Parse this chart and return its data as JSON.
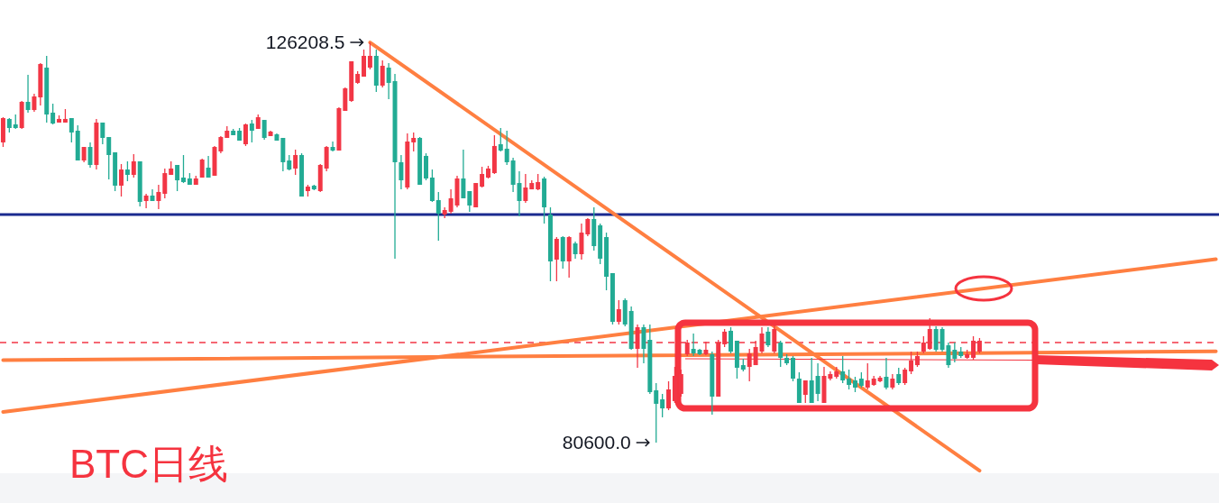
{
  "chart_data": {
    "type": "candlestick",
    "title": "BTC日线",
    "categories": [
      null,
      null,
      null,
      null,
      null,
      null,
      null,
      null,
      null,
      null,
      null,
      null,
      null,
      null,
      null,
      null,
      null,
      null,
      null,
      null,
      null,
      null,
      null,
      null,
      null,
      null,
      null,
      null,
      null,
      null,
      null,
      null,
      null,
      null,
      null,
      null,
      null,
      null,
      null,
      null,
      null,
      null,
      null,
      null,
      null,
      null,
      null,
      null,
      null,
      null,
      null,
      null,
      null,
      null,
      null,
      null,
      null,
      null,
      null,
      null,
      null,
      null,
      null,
      null,
      null,
      null,
      null,
      null,
      null,
      null,
      null,
      null,
      null,
      null,
      null,
      null,
      null,
      null,
      null,
      null,
      null,
      null,
      null,
      null,
      null,
      null,
      null,
      null,
      null,
      null,
      null,
      null,
      null,
      null,
      null,
      null,
      null,
      null,
      null,
      null,
      null,
      null,
      null,
      null,
      null,
      null,
      null,
      null,
      null,
      null,
      null,
      null,
      null,
      null,
      null,
      null,
      null,
      null,
      null,
      null,
      null,
      null,
      null,
      null,
      null,
      null,
      null,
      null,
      null,
      null,
      null,
      null,
      null,
      null,
      null,
      null,
      null,
      null,
      null,
      null,
      null,
      null,
      null,
      null,
      null,
      null,
      null,
      null,
      null,
      null,
      null,
      null,
      null,
      null,
      null,
      null,
      null,
      null,
      null,
      null,
      null,
      null,
      null,
      null,
      null,
      null,
      null,
      null,
      null,
      null,
      null,
      null,
      null,
      null,
      null,
      null,
      null,
      null,
      null,
      null,
      null,
      null,
      null,
      null,
      null,
      null,
      null,
      null,
      null,
      null,
      null,
      null,
      null,
      null,
      null,
      null
    ],
    "ohlc": [
      [
        114810,
        117680,
        114290,
        117580
      ],
      [
        117480,
        117580,
        115940,
        116450
      ],
      [
        116860,
        117990,
        116350,
        116450
      ],
      [
        116450,
        119530,
        116350,
        119430
      ],
      [
        119430,
        122510,
        118200,
        118500
      ],
      [
        118500,
        120350,
        118300,
        120050
      ],
      [
        119940,
        123850,
        119020,
        123740
      ],
      [
        123330,
        124670,
        117070,
        117990
      ],
      [
        118200,
        119220,
        116860,
        116960
      ],
      [
        117070,
        117890,
        117070,
        117480
      ],
      [
        117070,
        118610,
        117070,
        117480
      ],
      [
        117580,
        117580,
        114810,
        115940
      ],
      [
        116140,
        116760,
        112750,
        112750
      ],
      [
        112750,
        114290,
        112550,
        114290
      ],
      [
        114290,
        114810,
        111930,
        112240
      ],
      [
        112240,
        117480,
        111720,
        117070
      ],
      [
        117070,
        117070,
        114600,
        115320
      ],
      [
        115420,
        115420,
        110590,
        113370
      ],
      [
        113680,
        113680,
        109260,
        109880
      ],
      [
        109880,
        112340,
        108640,
        111720
      ],
      [
        111720,
        112650,
        110390,
        111110
      ],
      [
        111110,
        113470,
        110800,
        112650
      ],
      [
        112650,
        112650,
        107510,
        108030
      ],
      [
        108130,
        108950,
        107310,
        108750
      ],
      [
        108750,
        109460,
        108130,
        108130
      ],
      [
        108130,
        109980,
        107210,
        109160
      ],
      [
        108950,
        111830,
        108440,
        111310
      ],
      [
        111110,
        112650,
        111110,
        111830
      ],
      [
        112240,
        112240,
        109260,
        110490
      ],
      [
        110800,
        113370,
        110180,
        110290
      ],
      [
        110700,
        111310,
        109980,
        109980
      ],
      [
        109980,
        111010,
        109980,
        110700
      ],
      [
        110800,
        112960,
        110800,
        112850
      ],
      [
        111930,
        113270,
        110800,
        110800
      ],
      [
        111010,
        114400,
        111010,
        114290
      ],
      [
        113780,
        115530,
        113570,
        115420
      ],
      [
        115320,
        116660,
        115320,
        116140
      ],
      [
        116140,
        116350,
        115630,
        115630
      ],
      [
        116140,
        116450,
        115010,
        115010
      ],
      [
        114600,
        116960,
        114400,
        116860
      ],
      [
        116960,
        117370,
        114810,
        116140
      ],
      [
        116350,
        117990,
        116350,
        117680
      ],
      [
        117370,
        117370,
        115110,
        115320
      ],
      [
        115530,
        116140,
        115530,
        116040
      ],
      [
        115730,
        115830,
        115010,
        115010
      ],
      [
        115320,
        115320,
        111520,
        112550
      ],
      [
        112750,
        113370,
        111620,
        111720
      ],
      [
        111830,
        113980,
        111110,
        113370
      ],
      [
        113370,
        113570,
        108640,
        108640
      ],
      [
        109260,
        109980,
        108640,
        109770
      ],
      [
        109880,
        109980,
        109360,
        109460
      ],
      [
        109260,
        112340,
        109160,
        112240
      ],
      [
        111830,
        114400,
        111520,
        114290
      ],
      [
        114290,
        114910,
        113780,
        113880
      ],
      [
        113880,
        118810,
        113880,
        118710
      ],
      [
        118400,
        121070,
        118400,
        120970
      ],
      [
        119530,
        124050,
        119430,
        124050
      ],
      [
        121590,
        122920,
        121480,
        122610
      ],
      [
        122300,
        125390,
        122300,
        124670
      ],
      [
        123330,
        126208.5,
        123130,
        124670
      ],
      [
        124670,
        125390,
        120560,
        121280
      ],
      [
        121280,
        124150,
        121070,
        123540
      ],
      [
        123330,
        123850,
        119740,
        121590
      ],
      [
        121790,
        122610,
        101560,
        112550
      ],
      [
        112550,
        113370,
        109460,
        110490
      ],
      [
        109670,
        115830,
        109460,
        114910
      ],
      [
        114810,
        115940,
        113780,
        115320
      ],
      [
        115320,
        115420,
        109980,
        109980
      ],
      [
        113270,
        113570,
        110490,
        110700
      ],
      [
        110800,
        111720,
        108030,
        108130
      ],
      [
        108230,
        109160,
        103610,
        106690
      ],
      [
        106590,
        107410,
        106180,
        107100
      ],
      [
        106900,
        109460,
        106690,
        108440
      ],
      [
        107620,
        111010,
        107410,
        110700
      ],
      [
        110700,
        113980,
        108440,
        108440
      ],
      [
        109260,
        109260,
        106900,
        107620
      ],
      [
        107410,
        110180,
        107410,
        110180
      ],
      [
        109770,
        112030,
        109670,
        111210
      ],
      [
        110800,
        112140,
        110700,
        111830
      ],
      [
        111310,
        115630,
        111210,
        114400
      ],
      [
        114600,
        116450,
        113780,
        113880
      ],
      [
        114090,
        116140,
        112240,
        112550
      ],
      [
        112750,
        113060,
        109160,
        109980
      ],
      [
        110180,
        111520,
        106380,
        108130
      ],
      [
        108130,
        111210,
        107920,
        109670
      ],
      [
        109460,
        110490,
        109460,
        110180
      ],
      [
        109460,
        111210,
        109360,
        110290
      ],
      [
        110700,
        110900,
        105560,
        107410
      ],
      [
        106590,
        107410,
        98990,
        101250
      ],
      [
        101450,
        104020,
        98990,
        103820
      ],
      [
        104020,
        104120,
        100430,
        101250
      ],
      [
        101250,
        104120,
        99400,
        104020
      ],
      [
        103300,
        103510,
        101560,
        102070
      ],
      [
        102070,
        105560,
        101450,
        104530
      ],
      [
        104330,
        106180,
        104120,
        106080
      ],
      [
        106080,
        107410,
        102480,
        102990
      ],
      [
        105360,
        105560,
        100940,
        101560
      ],
      [
        104020,
        104530,
        97960,
        99500
      ],
      [
        99910,
        99910,
        94060,
        94360
      ],
      [
        94360,
        96830,
        94060,
        95800
      ],
      [
        96830,
        97040,
        93850,
        94060
      ],
      [
        95600,
        96110,
        91180,
        91280
      ],
      [
        91280,
        94060,
        89130,
        93750
      ],
      [
        93750,
        94060,
        89640,
        91280
      ],
      [
        92310,
        94060,
        86150,
        86350
      ],
      [
        86560,
        87380,
        80600.0,
        85020
      ],
      [
        85530,
        86150,
        83480,
        84500
      ],
      [
        84500,
        87590,
        84300,
        86660
      ],
      [
        85330,
        89230,
        85120,
        88200
      ],
      [
        86150,
        88920,
        85840,
        88410
      ],
      [
        90670,
        92310,
        90460,
        92000
      ],
      [
        91280,
        93030,
        90460,
        90770
      ],
      [
        91180,
        91280,
        90560,
        90670
      ],
      [
        90670,
        92110,
        90560,
        91180
      ],
      [
        90670,
        90970,
        83780,
        85840
      ],
      [
        85840,
        92310,
        85840,
        92000
      ],
      [
        91800,
        93540,
        91490,
        93240
      ],
      [
        93340,
        93750,
        90770,
        90970
      ],
      [
        92210,
        92210,
        87890,
        89130
      ],
      [
        89430,
        90150,
        88720,
        88920
      ],
      [
        89230,
        91280,
        87590,
        90770
      ],
      [
        89430,
        92210,
        89430,
        91490
      ],
      [
        90970,
        93750,
        90770,
        93030
      ],
      [
        93240,
        93750,
        91490,
        91690
      ],
      [
        90970,
        93950,
        90770,
        93540
      ],
      [
        92000,
        92210,
        89230,
        90260
      ],
      [
        90260,
        90670,
        89430,
        89640
      ],
      [
        90260,
        90460,
        87590,
        87890
      ],
      [
        87890,
        88610,
        85120,
        85120
      ],
      [
        86040,
        87690,
        85120,
        87690
      ],
      [
        87690,
        90260,
        85120,
        85120
      ],
      [
        88200,
        89640,
        85330,
        86150
      ],
      [
        85120,
        89230,
        85120,
        88200
      ],
      [
        87890,
        88720,
        87690,
        88410
      ],
      [
        88100,
        89230,
        87890,
        88720
      ],
      [
        88720,
        90460,
        87380,
        87690
      ],
      [
        87890,
        88920,
        86660,
        87170
      ],
      [
        87690,
        88100,
        86350,
        86870
      ],
      [
        87890,
        88610,
        86870,
        87070
      ],
      [
        86870,
        89640,
        86660,
        87690
      ],
      [
        87170,
        88200,
        87070,
        87890
      ],
      [
        87590,
        88200,
        87480,
        88000
      ],
      [
        88100,
        90260,
        86660,
        86870
      ],
      [
        86870,
        88410,
        86660,
        87890
      ],
      [
        88410,
        89130,
        87170,
        87380
      ],
      [
        87380,
        89130,
        87170,
        88920
      ],
      [
        88720,
        90970,
        88410,
        89950
      ],
      [
        89430,
        90970,
        89230,
        90460
      ],
      [
        90970,
        92720,
        90770,
        92000
      ],
      [
        91280,
        94780,
        91180,
        93540
      ],
      [
        93540,
        93850,
        90970,
        91180
      ],
      [
        93540,
        93750,
        90970,
        91180
      ],
      [
        91690,
        92000,
        89130,
        89430
      ],
      [
        91180,
        92000,
        89740,
        90150
      ],
      [
        90970,
        91490,
        90260,
        90460
      ],
      [
        90260,
        91180,
        90150,
        90670
      ],
      [
        90260,
        92720,
        90050,
        92210
      ],
      [
        90970,
        92520,
        90770,
        92210
      ],
      null,
      null,
      null,
      null,
      null,
      null,
      null,
      null,
      null,
      null,
      null,
      null,
      null,
      null,
      null,
      null,
      null,
      null,
      null,
      null,
      null,
      null,
      null,
      null,
      null,
      null,
      null,
      null,
      null,
      null,
      null,
      null,
      null,
      null,
      null,
      null,
      null,
      null
    ],
    "series": [
      {
        "type": "line",
        "color": "#ff7f41",
        "values": [
          null,
          null,
          null,
          null,
          null,
          null,
          null,
          null,
          null,
          null,
          null,
          null,
          null,
          null,
          null,
          null,
          null,
          null,
          null,
          null,
          null,
          null,
          null,
          null,
          null,
          null,
          null,
          null,
          null,
          null,
          null,
          null,
          null,
          null,
          null,
          null,
          null,
          null,
          null,
          null,
          null,
          null,
          null,
          null,
          null,
          null,
          null,
          null,
          null,
          null,
          null,
          null,
          null,
          null,
          null,
          null,
          null,
          null,
          null,
          126200,
          null,
          null,
          null,
          null,
          null,
          null,
          null,
          null,
          null,
          null,
          null,
          null,
          null,
          null,
          null,
          null,
          null,
          null,
          null,
          null,
          null,
          null,
          null,
          null,
          null,
          null,
          null,
          null,
          null,
          null,
          null,
          null,
          null,
          null,
          null,
          null,
          null,
          null,
          null,
          null,
          null,
          null,
          null,
          null,
          null,
          null,
          null,
          null,
          null,
          null,
          null,
          null,
          null,
          null,
          null,
          null,
          null,
          null,
          null,
          null,
          null,
          null,
          null,
          null,
          null,
          null,
          null,
          null,
          null,
          null,
          null,
          null,
          null,
          null,
          null,
          null,
          null,
          null,
          null,
          null,
          null,
          null,
          null,
          null,
          null,
          null,
          null,
          null,
          null,
          null,
          null,
          null,
          null,
          null,
          null,
          null,
          null,
          77400,
          null,
          null,
          null,
          null,
          null,
          null,
          null,
          null,
          null,
          null,
          null,
          null,
          null,
          null,
          null,
          null,
          null,
          null,
          null,
          null,
          null,
          null,
          null,
          null,
          null,
          null,
          null,
          null,
          null,
          null,
          null,
          null,
          null,
          null,
          null,
          null,
          null,
          null
        ]
      },
      {
        "type": "line",
        "color": "#ff7f41",
        "values": [
          84100,
          null,
          null,
          null,
          null,
          null,
          null,
          null,
          null,
          null,
          null,
          null,
          null,
          null,
          null,
          null,
          null,
          null,
          null,
          null,
          null,
          null,
          null,
          null,
          null,
          null,
          null,
          null,
          null,
          null,
          null,
          null,
          null,
          null,
          null,
          null,
          null,
          null,
          null,
          null,
          null,
          null,
          null,
          null,
          null,
          null,
          null,
          null,
          null,
          null,
          null,
          null,
          null,
          null,
          null,
          null,
          null,
          null,
          null,
          null,
          null,
          null,
          null,
          null,
          null,
          null,
          null,
          null,
          null,
          null,
          null,
          null,
          null,
          null,
          null,
          null,
          null,
          null,
          null,
          null,
          null,
          null,
          null,
          null,
          null,
          null,
          null,
          null,
          null,
          null,
          null,
          null,
          null,
          null,
          null,
          null,
          null,
          null,
          null,
          null,
          null,
          null,
          null,
          null,
          null,
          null,
          null,
          null,
          null,
          null,
          null,
          null,
          null,
          null,
          null,
          null,
          null,
          null,
          null,
          null,
          null,
          null,
          null,
          null,
          null,
          null,
          null,
          null,
          null,
          null,
          null,
          null,
          null,
          null,
          null,
          null,
          null,
          null,
          null,
          null,
          null,
          null,
          null,
          null,
          null,
          null,
          null,
          null,
          null,
          null,
          null,
          null,
          null,
          null,
          null,
          null,
          null,
          null,
          null,
          null,
          null,
          null,
          null,
          null,
          null,
          null,
          null,
          null,
          null,
          null,
          null,
          null,
          null,
          null,
          null,
          null,
          null,
          null,
          null,
          null,
          null,
          null,
          null,
          null,
          null,
          null,
          null,
          null,
          null,
          null,
          null,
          null,
          null,
          null,
          null,
          101500
        ]
      },
      {
        "type": "line",
        "color": "#ff7f41",
        "values": [
          90000,
          null,
          null,
          null,
          null,
          null,
          null,
          null,
          null,
          null,
          null,
          null,
          null,
          null,
          null,
          null,
          null,
          null,
          null,
          null,
          null,
          null,
          null,
          null,
          null,
          null,
          null,
          null,
          null,
          null,
          null,
          null,
          null,
          null,
          null,
          null,
          null,
          null,
          null,
          null,
          null,
          null,
          null,
          null,
          null,
          null,
          null,
          null,
          null,
          null,
          null,
          null,
          null,
          null,
          null,
          null,
          null,
          null,
          null,
          null,
          null,
          null,
          null,
          null,
          null,
          null,
          null,
          null,
          null,
          null,
          null,
          null,
          null,
          null,
          null,
          null,
          null,
          null,
          null,
          null,
          null,
          null,
          null,
          null,
          null,
          null,
          null,
          null,
          null,
          null,
          null,
          null,
          null,
          null,
          null,
          null,
          null,
          null,
          null,
          null,
          null,
          null,
          null,
          null,
          null,
          null,
          null,
          null,
          null,
          null,
          null,
          null,
          null,
          null,
          null,
          null,
          null,
          null,
          null,
          null,
          null,
          null,
          null,
          null,
          null,
          null,
          null,
          null,
          null,
          null,
          null,
          null,
          null,
          null,
          null,
          null,
          null,
          null,
          null,
          null,
          null,
          null,
          null,
          null,
          null,
          null,
          null,
          null,
          null,
          null,
          null,
          null,
          null,
          null,
          null,
          null,
          null,
          null,
          null,
          null,
          null,
          null,
          null,
          null,
          null,
          null,
          null,
          null,
          null,
          null,
          null,
          null,
          null,
          null,
          null,
          null,
          null,
          null,
          null,
          null,
          null,
          null,
          null,
          null,
          null,
          null,
          null,
          null,
          null,
          null,
          null,
          null,
          null,
          null,
          null,
          91000
        ]
      }
    ],
    "ref_lines": [
      {
        "axis": "y",
        "value": 106590,
        "color": "#1a2a8f"
      },
      {
        "axis": "y",
        "value": 92000,
        "color": "#f23645",
        "line_style": "dashed"
      }
    ],
    "annotations": [
      "126208.5",
      "80600.0"
    ]
  }
}
